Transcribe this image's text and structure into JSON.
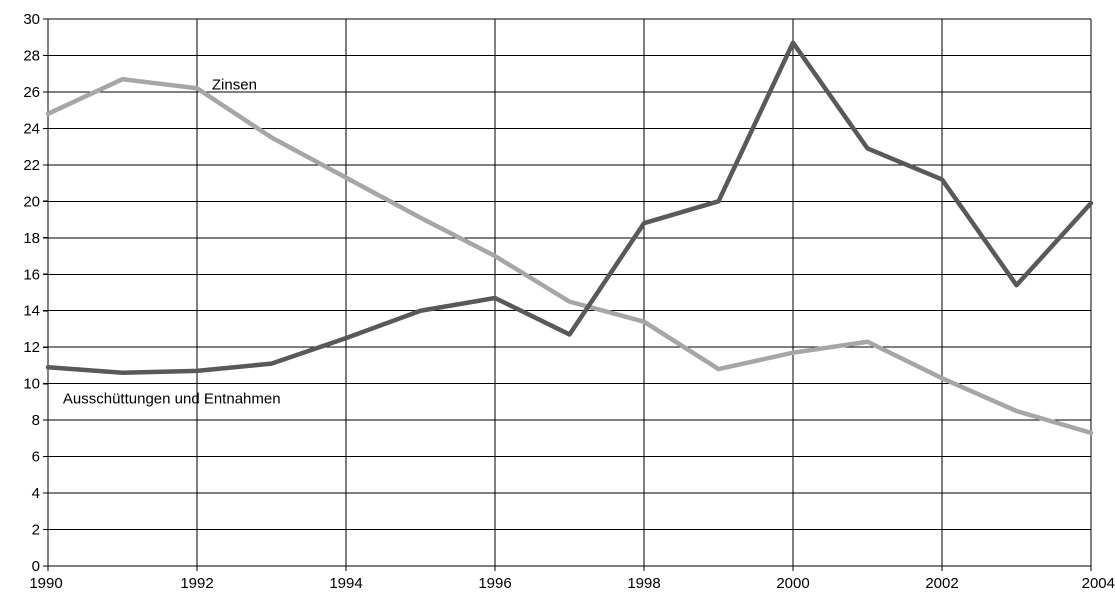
{
  "chart_data": {
    "type": "line",
    "title": "",
    "xlabel": "",
    "ylabel": "",
    "xlim": [
      1990,
      2004
    ],
    "ylim": [
      0,
      30
    ],
    "x_ticks": [
      1990,
      1992,
      1994,
      1996,
      1998,
      2000,
      2002,
      2004
    ],
    "y_ticks": [
      0,
      2,
      4,
      6,
      8,
      10,
      12,
      14,
      16,
      18,
      20,
      22,
      24,
      26,
      28,
      30
    ],
    "grid": true,
    "legend": "none",
    "x": [
      1990,
      1991,
      1992,
      1993,
      1994,
      1995,
      1996,
      1997,
      1998,
      1999,
      2000,
      2001,
      2002,
      2003,
      2004
    ],
    "series": [
      {
        "name": "Zinsen",
        "color": "#a6a6a6",
        "values": [
          24.8,
          26.7,
          26.2,
          23.5,
          21.3,
          19.1,
          17.0,
          14.5,
          13.4,
          10.8,
          11.7,
          12.3,
          10.3,
          8.5,
          7.3
        ],
        "label_at": [
          1992.2,
          26.4
        ]
      },
      {
        "name": "Ausschüttungen und Entnahmen",
        "color": "#595959",
        "values": [
          10.9,
          10.6,
          10.7,
          11.1,
          12.5,
          14.0,
          14.7,
          12.7,
          18.8,
          20.0,
          28.7,
          22.9,
          21.2,
          15.4,
          19.9
        ],
        "label_at": [
          1990.2,
          9.2
        ]
      }
    ]
  }
}
